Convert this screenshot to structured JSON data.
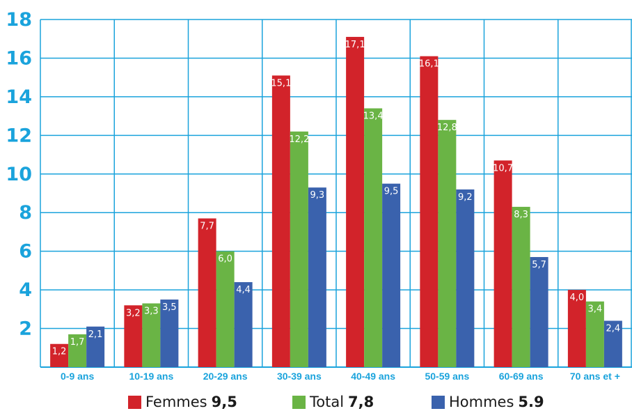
{
  "chart_data": {
    "type": "bar",
    "categories": [
      "0-9 ans",
      "10-19 ans",
      "20-29 ans",
      "30-39 ans",
      "40-49 ans",
      "50-59 ans",
      "60-69 ans",
      "70 ans et +"
    ],
    "series": [
      {
        "name": "Femmes",
        "total": "9,5",
        "color": "#d2232a",
        "values": [
          1.2,
          3.2,
          7.7,
          15.1,
          17.1,
          16.1,
          10.7,
          4.0
        ],
        "labels": [
          "1,2",
          "3,2",
          "7,7",
          "15,1",
          "17,1",
          "16,1",
          "10,7",
          "4,0"
        ]
      },
      {
        "name": "Total",
        "total": "7,8",
        "color": "#6ab445",
        "values": [
          1.7,
          3.3,
          6.0,
          12.2,
          13.4,
          12.8,
          8.3,
          3.4
        ],
        "labels": [
          "1,7",
          "3,3",
          "6,0",
          "12,2",
          "13,4",
          "12,8",
          "8,3",
          "3,4"
        ]
      },
      {
        "name": "Hommes",
        "total": "5.9",
        "color": "#3a62ad",
        "values": [
          2.1,
          3.5,
          4.4,
          9.3,
          9.5,
          9.2,
          5.7,
          2.4
        ],
        "labels": [
          "2,1",
          "3,5",
          "4,4",
          "9,3",
          "9,5",
          "9,2",
          "5,7",
          "2,4"
        ]
      }
    ],
    "ylim": [
      0,
      18
    ],
    "yticks": [
      "2",
      "4",
      "6",
      "8",
      "10",
      "12",
      "14",
      "16",
      "18"
    ],
    "grid": true,
    "legend_position": "bottom",
    "colors": {
      "grid": "#1aa3dc",
      "tick_text": "#1aa3dc"
    }
  },
  "legend": [
    {
      "name": "Femmes",
      "total": "9,5"
    },
    {
      "name": "Total",
      "total": "7,8"
    },
    {
      "name": "Hommes",
      "total": "5.9"
    }
  ]
}
